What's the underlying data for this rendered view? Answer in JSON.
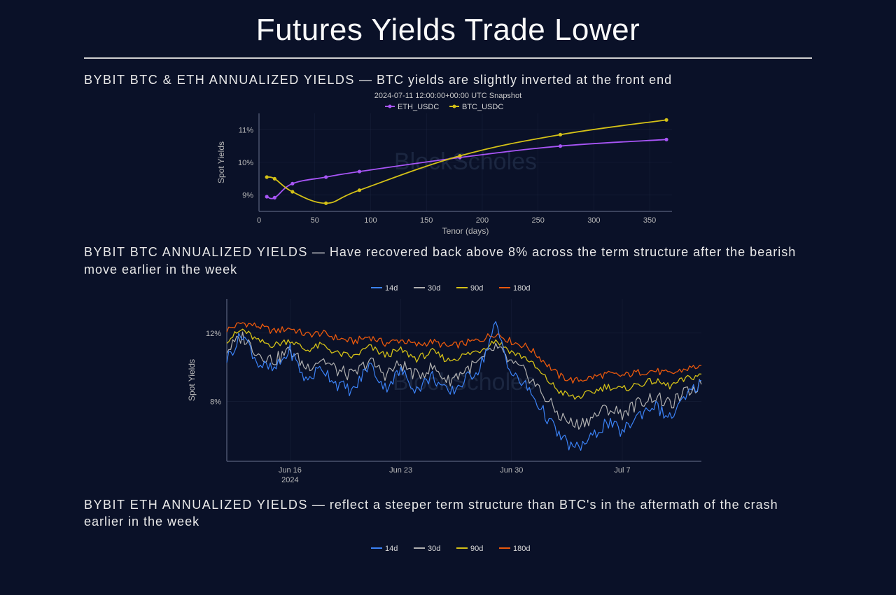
{
  "title": "Futures Yields Trade Lower",
  "watermark": "BlockScholes",
  "chart1": {
    "type": "line",
    "caption_bold": "BYBIT BTC & ETH ANNUALIZED YIELDS",
    "caption_rest": " — BTC yields are slightly inverted at the front end",
    "snapshot": "2024-07-11 12:00:00+00:00 UTC Snapshot",
    "xlabel": "Tenor (days)",
    "ylabel": "Spot Yields",
    "xlim": [
      0,
      370
    ],
    "ylim": [
      8.5,
      11.5
    ],
    "xticks": [
      0,
      50,
      100,
      150,
      200,
      250,
      300,
      350
    ],
    "yticks": [
      9,
      10,
      11
    ],
    "ytick_labels": [
      "9%",
      "10%",
      "11%"
    ],
    "series": [
      {
        "name": "ETH_USDC",
        "color": "#a855f7",
        "marker_color": "#a855f7",
        "line_width": 1.8,
        "x": [
          7,
          14,
          30,
          60,
          90,
          180,
          270,
          365
        ],
        "y": [
          8.95,
          8.92,
          9.35,
          9.55,
          9.72,
          10.15,
          10.5,
          10.7
        ]
      },
      {
        "name": "BTC_USDC",
        "color": "#d4c117",
        "marker_color": "#d4c117",
        "line_width": 1.8,
        "x": [
          7,
          14,
          30,
          60,
          90,
          180,
          270,
          365
        ],
        "y": [
          9.55,
          9.5,
          9.1,
          8.75,
          9.15,
          10.2,
          10.85,
          11.3
        ]
      }
    ],
    "background_color": "#0a1128",
    "grid_color": "#2a3450"
  },
  "chart2": {
    "type": "line-timeseries",
    "caption_bold": "BYBIT BTC ANNUALIZED YIELDS",
    "caption_rest": " — Have recovered back above 8% across the term structure after the bearish move earlier in the week",
    "ylabel": "Spot Yields",
    "xlim": [
      0,
      30
    ],
    "ylim": [
      4.5,
      14
    ],
    "yticks": [
      8,
      12
    ],
    "ytick_labels": [
      "8%",
      "12%"
    ],
    "xticks": [
      4,
      11,
      18,
      25
    ],
    "xtick_labels": [
      "Jun 16",
      "Jun 23",
      "Jun 30",
      "Jul 7"
    ],
    "xtick_sub": "2024",
    "legend": [
      {
        "name": "14d",
        "color": "#3b82f6"
      },
      {
        "name": "30d",
        "color": "#b0b0b0"
      },
      {
        "name": "90d",
        "color": "#d4c117"
      },
      {
        "name": "180d",
        "color": "#ea580c"
      }
    ],
    "series": [
      {
        "name": "180d",
        "color": "#ea580c",
        "line_width": 1.3,
        "y": [
          12.2,
          12.6,
          12.4,
          12.1,
          12.3,
          11.9,
          12.0,
          11.7,
          11.5,
          11.8,
          11.4,
          11.6,
          11.3,
          11.5,
          11.2,
          11.4,
          11.6,
          12.0,
          11.5,
          11.2,
          10.4,
          9.5,
          9.2,
          9.4,
          9.6,
          9.5,
          9.7,
          9.8,
          9.6,
          9.9,
          10.1
        ]
      },
      {
        "name": "90d",
        "color": "#d4c117",
        "line_width": 1.3,
        "y": [
          11.6,
          12.2,
          11.5,
          11.3,
          11.6,
          11.0,
          11.3,
          10.8,
          10.6,
          11.2,
          10.7,
          11.0,
          10.5,
          10.9,
          10.4,
          10.7,
          11.0,
          11.6,
          10.9,
          10.5,
          9.5,
          8.6,
          8.2,
          8.5,
          8.9,
          8.7,
          9.0,
          9.2,
          8.9,
          9.3,
          9.6
        ]
      },
      {
        "name": "30d",
        "color": "#b0b0b0",
        "line_width": 1.2,
        "y": [
          11.0,
          11.8,
          10.8,
          10.4,
          11.0,
          10.0,
          10.5,
          9.8,
          9.5,
          10.4,
          9.6,
          10.2,
          9.5,
          10.0,
          9.2,
          9.8,
          10.3,
          11.2,
          10.2,
          9.6,
          8.4,
          7.2,
          6.6,
          7.0,
          7.6,
          7.3,
          7.9,
          8.3,
          7.8,
          8.5,
          9.0
        ]
      },
      {
        "name": "14d",
        "color": "#3b82f6",
        "line_width": 1.2,
        "y": [
          10.5,
          12.0,
          10.2,
          9.8,
          11.0,
          9.2,
          10.0,
          9.0,
          8.6,
          10.2,
          8.8,
          9.8,
          8.7,
          9.5,
          8.4,
          9.2,
          10.0,
          12.5,
          9.6,
          8.8,
          7.4,
          6.0,
          5.2,
          5.8,
          6.8,
          6.2,
          7.2,
          7.8,
          7.0,
          8.2,
          9.2
        ]
      }
    ],
    "volatility": 0.6,
    "background_color": "#0a1128",
    "grid_color": "#2a3450"
  },
  "chart3": {
    "caption_bold": "BYBIT ETH ANNUALIZED YIELDS",
    "caption_rest": " — reflect a steeper term structure than BTC's in the aftermath of the crash earlier in the week",
    "legend": [
      {
        "name": "14d",
        "color": "#3b82f6"
      },
      {
        "name": "30d",
        "color": "#b0b0b0"
      },
      {
        "name": "90d",
        "color": "#d4c117"
      },
      {
        "name": "180d",
        "color": "#ea580c"
      }
    ]
  }
}
